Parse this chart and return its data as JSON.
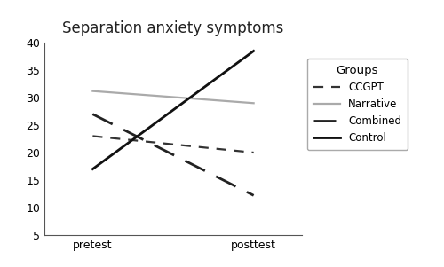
{
  "title": "Separation anxiety symptoms",
  "x_labels": [
    "pretest",
    "posttest"
  ],
  "x_values": [
    0,
    1
  ],
  "series": [
    {
      "label": "CCGPT",
      "values": [
        23.0,
        20.0
      ],
      "color": "#333333",
      "linewidth": 1.6,
      "dashes": [
        5,
        4
      ]
    },
    {
      "label": "Narrative",
      "values": [
        31.2,
        29.0
      ],
      "color": "#aaaaaa",
      "linewidth": 1.6,
      "dashes": null
    },
    {
      "label": "Combined",
      "values": [
        27.0,
        12.2
      ],
      "color": "#222222",
      "linewidth": 2.0,
      "dashes": [
        9,
        5
      ]
    },
    {
      "label": "Control",
      "values": [
        17.0,
        38.5
      ],
      "color": "#111111",
      "linewidth": 2.0,
      "dashes": null
    }
  ],
  "ylim": [
    5,
    40
  ],
  "yticks": [
    5,
    10,
    15,
    20,
    25,
    30,
    35,
    40
  ],
  "legend_title": "Groups",
  "background_color": "#ffffff",
  "title_fontsize": 12,
  "tick_fontsize": 9,
  "legend_fontsize": 8.5,
  "legend_title_fontsize": 9.5
}
